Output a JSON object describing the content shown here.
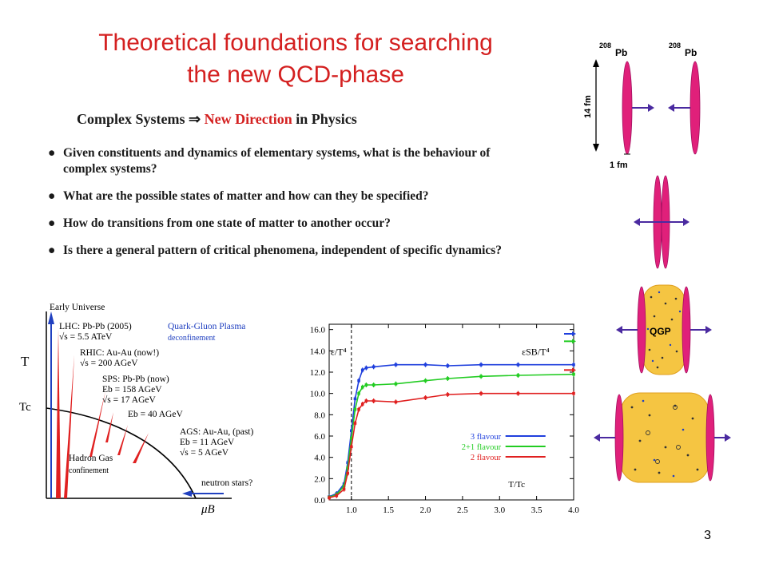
{
  "title": {
    "line1": "Theoretical foundations for searching",
    "line2": "the new QCD-phase"
  },
  "section": {
    "heading_part1": "Complex Systems",
    "heading_arrow": "⇒",
    "heading_highlight": "New Direction",
    "heading_part2": "in Physics",
    "bullets": [
      "Given constituents and dynamics of elementary systems, what is the behaviour of complex systems?",
      "What are the possible states of matter and how can they be specified?",
      "How do transitions from one state of matter to another occur?",
      "Is there a general pattern of critical phenomena, independent of specific dynamics?"
    ]
  },
  "phase_diagram": {
    "early_universe": "Early Universe",
    "lhc": "LHC: Pb-Pb (2005)",
    "lhc_energy": "√s = 5.5 ATeV",
    "rhic": "RHIC: Au-Au (now!)",
    "rhic_energy": "√s = 200 AGeV",
    "sps": "SPS: Pb-Pb (now)",
    "sps_e1": "Eb = 158 AGeV",
    "sps_e2": "√s = 17 AGeV",
    "sps_e3": "Eb = 40 AGeV",
    "ags": "AGS: Au-Au, (past)",
    "ags_e1": "Eb = 11 AGeV",
    "ags_e2": "√s = 5 AGeV",
    "qgp_label": "Quark-Gluon Plasma",
    "deconfinement": "deconfinement",
    "hadron_gas": "Hadron Gas",
    "confinement": "confinement",
    "neutron_stars": "neutron stars?",
    "axis_t": "T",
    "axis_tc": "Tc",
    "axis_mu": "μB",
    "colors": {
      "red": "#e02020",
      "blue": "#2040c0"
    }
  },
  "chart_data": {
    "type": "line",
    "x": [
      0.7,
      0.8,
      0.9,
      0.95,
      1.0,
      1.05,
      1.1,
      1.15,
      1.2,
      1.3,
      1.6,
      2.0,
      2.3,
      2.75,
      3.25,
      4.0
    ],
    "series": [
      {
        "name": "3 flavour",
        "color": "#1f3fdd",
        "values": [
          0.3,
          0.6,
          1.5,
          3.5,
          6.5,
          9.5,
          11.2,
          12.2,
          12.4,
          12.5,
          12.7,
          12.7,
          12.6,
          12.7,
          12.7,
          12.7
        ]
      },
      {
        "name": "2+1 flavour",
        "color": "#22cc22",
        "values": [
          0.25,
          0.5,
          1.3,
          3.0,
          5.8,
          8.5,
          10.0,
          10.6,
          10.8,
          10.8,
          10.9,
          11.2,
          11.4,
          11.6,
          11.7,
          11.8
        ]
      },
      {
        "name": "2 flavour",
        "color": "#e02020",
        "values": [
          0.2,
          0.4,
          1.0,
          2.5,
          5.0,
          7.2,
          8.5,
          9.0,
          9.3,
          9.3,
          9.2,
          9.6,
          9.9,
          10.0,
          10.0,
          10.0
        ]
      }
    ],
    "yticks": [
      "0.0",
      "2.0",
      "4.0",
      "6.0",
      "8.0",
      "10.0",
      "12.0",
      "14.0",
      "16.0"
    ],
    "xticks": [
      "1.0",
      "1.5",
      "2.0",
      "2.5",
      "3.0",
      "3.5",
      "4.0"
    ],
    "xlim": [
      0.7,
      4.0
    ],
    "ylim": [
      0,
      16.5
    ],
    "ylabel": "ε/T⁴",
    "xlabel": "T/Tc",
    "sb_label": "εSB/T⁴",
    "sb_limits": [
      {
        "value": 15.6,
        "color": "#1f3fdd"
      },
      {
        "value": 14.9,
        "color": "#22cc22"
      },
      {
        "value": 12.2,
        "color": "#e02020"
      }
    ],
    "legend": "center-right"
  },
  "collision": {
    "pb_mass": "208",
    "pb_symbol": "Pb",
    "length_long": "14 fm",
    "length_short": "1 fm",
    "qgp": "QGP",
    "colors": {
      "nucleus": "#e0207a",
      "arrow": "#4a2aa0",
      "fireball": "#f5c542"
    }
  },
  "page_number": "3"
}
